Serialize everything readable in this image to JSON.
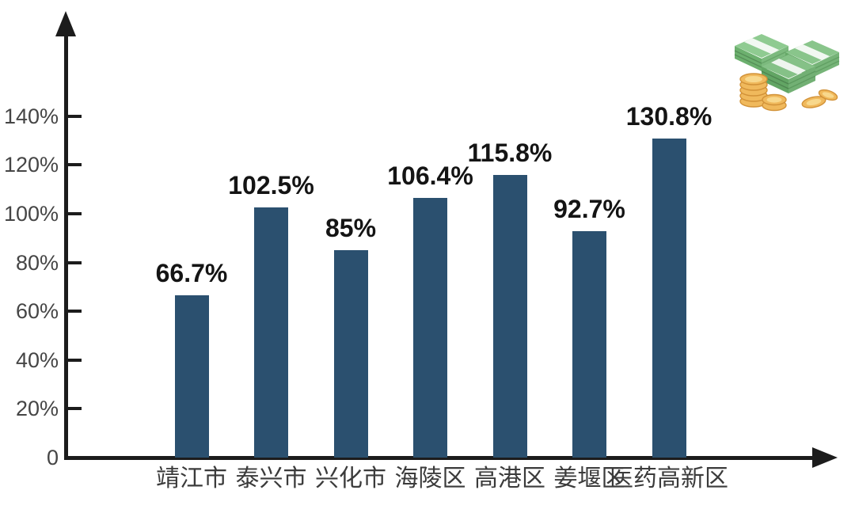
{
  "chart_data": {
    "type": "bar",
    "categories": [
      "靖江市",
      "泰兴市",
      "兴化市",
      "海陵区",
      "高港区",
      "姜堰区",
      "医药高新区"
    ],
    "values": [
      66.7,
      102.5,
      85,
      106.4,
      115.8,
      92.7,
      130.8
    ],
    "data_labels": [
      "66.7%",
      "102.5%",
      "85%",
      "106.4%",
      "115.8%",
      "92.7%",
      "130.8%"
    ],
    "y_axis": {
      "ticks": [
        {
          "label": "0",
          "value": 0
        },
        {
          "label": "20%",
          "value": 20
        },
        {
          "label": "40%",
          "value": 40
        },
        {
          "label": "60%",
          "value": 60
        },
        {
          "label": "80%",
          "value": 80
        },
        {
          "label": "100%",
          "value": 100
        },
        {
          "label": "120%",
          "value": 120
        },
        {
          "label": "140%",
          "value": 140
        }
      ],
      "range": [
        0,
        155
      ]
    },
    "grid": false,
    "legend": false,
    "colors": {
      "bar": "#2b506f",
      "value_label": "#141414",
      "axis": "#1c1c1c",
      "tick_label": "#454545",
      "category_label": "#3b3b3b",
      "background": "#ffffff"
    }
  },
  "decorations": {
    "money_icon": {
      "name": "money-stack-icon",
      "bill_color": "#8fcb91",
      "bill_side_color": "#6cb06e",
      "band_color": "#f2f8f2",
      "coin_color": "#f0b95c",
      "coin_edge_color": "#d29238",
      "coin_highlight_color": "#f8d88c"
    }
  }
}
